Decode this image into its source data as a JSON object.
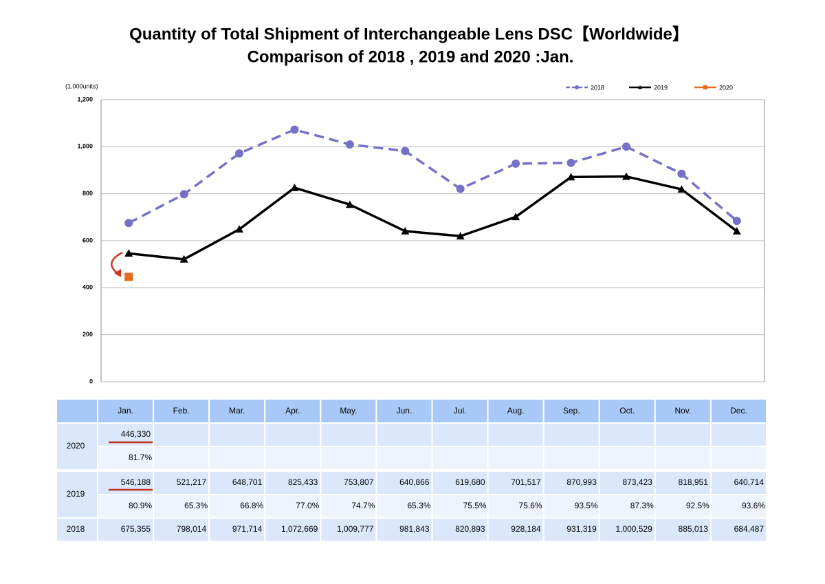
{
  "chart_data": {
    "type": "line",
    "title": "Quantity of Total Shipment of Interchangeable Lens DSC【Worldwide】",
    "subtitle": "Comparison of 2018 , 2019 and 2020 :Jan.",
    "y_label": "(1,000units)",
    "categories": [
      "Jan.",
      "Feb.",
      "Mar.",
      "Apr.",
      "May.",
      "Jun.",
      "Jul.",
      "Aug.",
      "Sep.",
      "Oct.",
      "Nov.",
      "Dec."
    ],
    "ylim": [
      0,
      1200
    ],
    "yticks": [
      0,
      200,
      400,
      600,
      800,
      {
        "value": 1000,
        "label": "1,000"
      },
      {
        "value": 1200,
        "label": "1,200"
      }
    ],
    "grid": true,
    "legend": "top-right",
    "series": [
      {
        "name": "2020",
        "color": "#e36c1f",
        "marker": "square",
        "dash": false,
        "values": [
          446.33,
          null,
          null,
          null,
          null,
          null,
          null,
          null,
          null,
          null,
          null,
          null
        ],
        "value_labels": [
          "446,330",
          null,
          null,
          null,
          null,
          null,
          null,
          null,
          null,
          null,
          null,
          null
        ],
        "ratios": [
          81.7,
          null,
          null,
          null,
          null,
          null,
          null,
          null,
          null,
          null,
          null,
          null
        ],
        "ratio_labels": [
          "81.7%",
          null,
          null,
          null,
          null,
          null,
          null,
          null,
          null,
          null,
          null,
          null
        ]
      },
      {
        "name": "2019",
        "color": "#000000",
        "marker": "triangle",
        "dash": false,
        "values": [
          546.188,
          521.217,
          648.701,
          825.433,
          753.807,
          640.866,
          619.68,
          701.517,
          870.993,
          873.423,
          818.951,
          640.714
        ],
        "value_labels": [
          "546,188",
          "521,217",
          "648,701",
          "825,433",
          "753,807",
          "640,866",
          "619,680",
          "701,517",
          "870,993",
          "873,423",
          "818,951",
          "640,714"
        ],
        "ratios": [
          80.9,
          65.3,
          66.8,
          77.0,
          74.7,
          65.3,
          75.5,
          75.6,
          93.5,
          87.3,
          92.5,
          93.6
        ],
        "ratio_labels": [
          "80.9%",
          "65.3%",
          "66.8%",
          "77.0%",
          "74.7%",
          "65.3%",
          "75.5%",
          "75.6%",
          "93.5%",
          "87.3%",
          "92.5%",
          "93.6%"
        ]
      },
      {
        "name": "2018",
        "color": "#7571c8",
        "marker": "circle",
        "dash": true,
        "values": [
          675.355,
          798.014,
          971.714,
          1072.669,
          1009.777,
          981.843,
          820.893,
          928.184,
          931.319,
          1000.529,
          885.013,
          684.487
        ],
        "value_labels": [
          "675,355",
          "798,014",
          "971,714",
          "1,072,669",
          "1,009,777",
          "981,843",
          "820,893",
          "928,184",
          "931,319",
          "1,000,529",
          "885,013",
          "684,487"
        ]
      }
    ]
  }
}
